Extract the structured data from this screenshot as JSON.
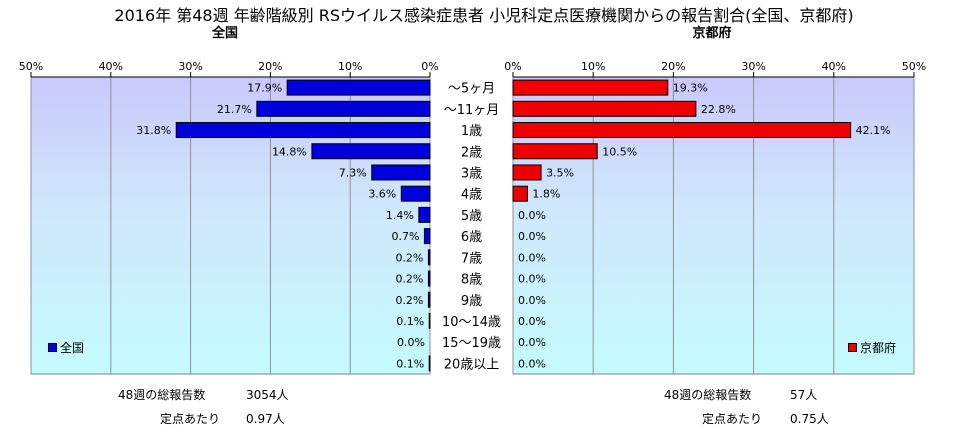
{
  "title": "2016年 第48週 年齢階級別 RSウイルス感染症患者 小児科定点医療機関からの報告割合(全国、京都府)",
  "colors": {
    "zenkoku": "#0000dd",
    "kyoto": "#ee0000",
    "bg_left": "#c8c8f8",
    "bg_right": "#c8c8f8"
  },
  "chart_data": [
    {
      "type": "bar",
      "orientation": "horizontal",
      "direction": "right-to-left",
      "title": "全国",
      "legend": "全国",
      "legend_position": "bottom-left",
      "xlim": [
        0,
        50
      ],
      "ticks": [
        "50%",
        "40%",
        "30%",
        "20%",
        "10%",
        "0%"
      ],
      "categories": [
        "～5ヶ月",
        "～11ヶ月",
        "1歳",
        "2歳",
        "3歳",
        "4歳",
        "5歳",
        "6歳",
        "7歳",
        "8歳",
        "9歳",
        "10～14歳",
        "15～19歳",
        "20歳以上"
      ],
      "values": [
        17.9,
        21.7,
        31.8,
        14.8,
        7.3,
        3.6,
        1.4,
        0.7,
        0.2,
        0.2,
        0.2,
        0.1,
        0.0,
        0.1
      ],
      "labels": [
        "17.9%",
        "21.7%",
        "31.8%",
        "14.8%",
        "7.3%",
        "3.6%",
        "1.4%",
        "0.7%",
        "0.2%",
        "0.2%",
        "0.2%",
        "0.1%",
        "0.0%",
        "0.1%"
      ],
      "grid": true
    },
    {
      "type": "bar",
      "orientation": "horizontal",
      "direction": "left-to-right",
      "title": "京都府",
      "legend": "京都府",
      "legend_position": "bottom-right",
      "xlim": [
        0,
        50
      ],
      "ticks": [
        "0%",
        "10%",
        "20%",
        "30%",
        "40%",
        "50%"
      ],
      "categories": [
        "～5ヶ月",
        "～11ヶ月",
        "1歳",
        "2歳",
        "3歳",
        "4歳",
        "5歳",
        "6歳",
        "7歳",
        "8歳",
        "9歳",
        "10～14歳",
        "15～19歳",
        "20歳以上"
      ],
      "values": [
        19.3,
        22.8,
        42.1,
        10.5,
        3.5,
        1.8,
        0.0,
        0.0,
        0.0,
        0.0,
        0.0,
        0.0,
        0.0,
        0.0
      ],
      "labels": [
        "19.3%",
        "22.8%",
        "42.1%",
        "10.5%",
        "3.5%",
        "1.8%",
        "0.0%",
        "0.0%",
        "0.0%",
        "0.0%",
        "0.0%",
        "0.0%",
        "0.0%",
        "0.0%"
      ],
      "grid": true
    }
  ],
  "summary": {
    "zenkoku": {
      "total_label": "48週の総報告数",
      "total_value": "3054人",
      "per_label": "定点あたり",
      "per_value": "0.97人"
    },
    "kyoto": {
      "total_label": "48週の総報告数",
      "total_value": "57人",
      "per_label": "定点あたり",
      "per_value": "0.75人"
    }
  }
}
